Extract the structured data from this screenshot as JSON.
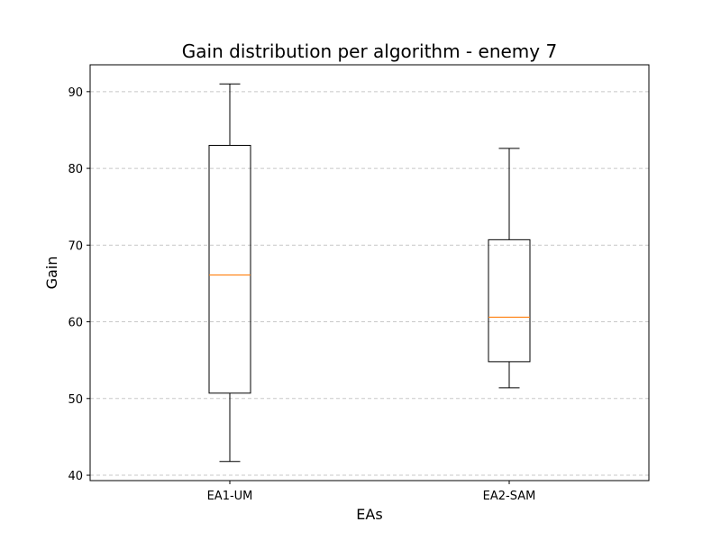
{
  "chart_data": {
    "type": "box",
    "title": "Gain distribution per algorithm - enemy 7",
    "xlabel": "EAs",
    "ylabel": "Gain",
    "categories": [
      "EA1-UM",
      "EA2-SAM"
    ],
    "boxes": [
      {
        "name": "EA1-UM",
        "whisker_low": 41.8,
        "q1": 50.7,
        "median": 66.1,
        "q3": 83.0,
        "whisker_high": 91.0
      },
      {
        "name": "EA2-SAM",
        "whisker_low": 51.4,
        "q1": 54.8,
        "median": 60.6,
        "q3": 70.7,
        "whisker_high": 82.6
      }
    ],
    "ylim": [
      39.3,
      93.5
    ],
    "yticks": [
      40,
      50,
      60,
      70,
      80,
      90
    ],
    "grid": "horizontal dashed",
    "colors": {
      "box": "#000000",
      "median": "#ff7f0e",
      "grid": "#c8c8c8"
    }
  }
}
